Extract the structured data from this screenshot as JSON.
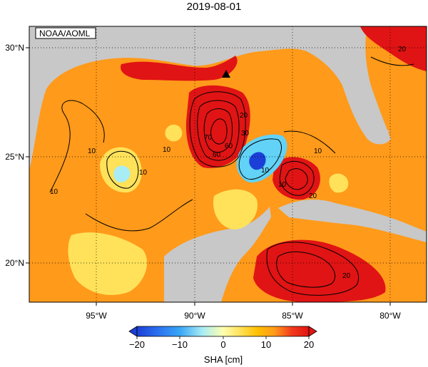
{
  "title": "2019-08-01",
  "source_label": "NOAA/AOML",
  "map": {
    "lon_ticks": [
      {
        "label": "95°W"
      },
      {
        "label": "90°W"
      },
      {
        "label": "85°W"
      },
      {
        "label": "80°W"
      }
    ],
    "lat_ticks": [
      {
        "label": "30°N"
      },
      {
        "label": "25°N"
      },
      {
        "label": "20°N"
      }
    ],
    "contour_labels": [
      "10",
      "10",
      "10",
      "10",
      "10",
      "20",
      "30",
      "60",
      "60",
      "70",
      "20",
      "10",
      "20",
      "20",
      "10"
    ],
    "marker": "triangle-marker"
  },
  "colorbar": {
    "label": "SHA [cm]",
    "ticks": [
      "−20",
      "−10",
      "0",
      "10",
      "20"
    ],
    "colors": [
      "#1b3fd6",
      "#2a6ff0",
      "#38a6f5",
      "#62d2f7",
      "#a8ecf5",
      "#ffffb0",
      "#ffe25a",
      "#ffc000",
      "#ff9a1a",
      "#ff6a1a",
      "#f23a1a",
      "#e01414"
    ]
  },
  "colors": {
    "land": "#c8c8c8",
    "ocean_low": "#ffc000",
    "ocean_high": "#e01414",
    "ocean_negative": "#38a6f5"
  }
}
